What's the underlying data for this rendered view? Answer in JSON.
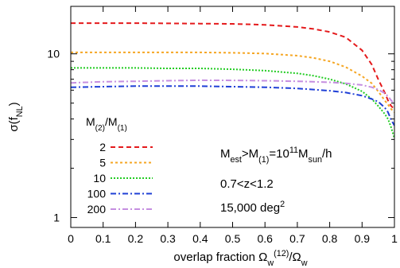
{
  "chart_data": {
    "type": "line",
    "xlabel": {
      "main": "overlap fraction Ω",
      "sub": "w",
      "sup": "(12)",
      "tail": "/Ω",
      "tail_sub": "w"
    },
    "ylabel": {
      "main": "σ(f",
      "sub": "NL",
      "tail": ")"
    },
    "x_ticks": [
      "0",
      "0.1",
      "0.2",
      "0.3",
      "0.4",
      "0.5",
      "0.6",
      "0.7",
      "0.8",
      "0.9",
      "1"
    ],
    "y_ticks": [
      "1",
      "10"
    ],
    "xlim": [
      0,
      1
    ],
    "ylim": [
      0.87,
      19.5
    ],
    "yscale": "log",
    "grid": false,
    "legend": {
      "title": {
        "p1": "M",
        "s1": "(2)",
        "p2": "/M",
        "s2": "(1)"
      },
      "placement": "left"
    },
    "annotations": [
      {
        "parts": [
          [
            "n",
            "M"
          ],
          [
            "sub",
            "est"
          ],
          [
            "n",
            ">M"
          ],
          [
            "sub",
            "(1)"
          ],
          [
            "n",
            "=10"
          ],
          [
            "sup",
            "11"
          ],
          [
            "n",
            "M"
          ],
          [
            "sub",
            "sun"
          ],
          [
            "n",
            "/h"
          ]
        ]
      },
      {
        "parts": [
          [
            "n",
            "0.7<z<1.2"
          ]
        ]
      },
      {
        "parts": [
          [
            "n",
            "15,000 deg"
          ],
          [
            "sup",
            "2"
          ]
        ]
      }
    ],
    "series": [
      {
        "name": "2",
        "color": "#e41a1c",
        "dash": "6,4",
        "x": [
          0,
          0.1,
          0.2,
          0.3,
          0.4,
          0.5,
          0.6,
          0.7,
          0.75,
          0.8,
          0.85,
          0.9,
          0.93,
          0.95,
          0.97,
          0.98,
          0.99,
          1.0
        ],
        "y": [
          15.4,
          15.4,
          15.4,
          15.35,
          15.3,
          15.25,
          15.05,
          14.6,
          14.2,
          13.6,
          12.6,
          10.5,
          8.6,
          7.0,
          5.8,
          5.2,
          4.8,
          4.6
        ]
      },
      {
        "name": "5",
        "color": "#f5a623",
        "dash": "3,3",
        "x": [
          0,
          0.1,
          0.2,
          0.3,
          0.4,
          0.5,
          0.6,
          0.7,
          0.75,
          0.8,
          0.85,
          0.9,
          0.93,
          0.95,
          0.97,
          0.98,
          0.99,
          1.0
        ],
        "y": [
          10.2,
          10.2,
          10.2,
          10.2,
          10.2,
          10.15,
          10.05,
          9.75,
          9.45,
          9.0,
          8.3,
          7.3,
          6.6,
          5.9,
          5.2,
          4.9,
          4.6,
          4.4
        ]
      },
      {
        "name": "10",
        "color": "#22cc22",
        "dash": "2,2",
        "x": [
          0,
          0.1,
          0.2,
          0.3,
          0.4,
          0.5,
          0.6,
          0.7,
          0.75,
          0.8,
          0.85,
          0.9,
          0.93,
          0.95,
          0.97,
          0.98,
          0.99,
          1.0
        ],
        "y": [
          8.2,
          8.2,
          8.2,
          8.15,
          8.15,
          8.05,
          7.9,
          7.6,
          7.35,
          7.0,
          6.55,
          5.9,
          5.3,
          4.8,
          4.3,
          4.0,
          3.55,
          3.05
        ]
      },
      {
        "name": "100",
        "color": "#1f3fd6",
        "dash": "7,3,2,3",
        "x": [
          0,
          0.1,
          0.2,
          0.3,
          0.4,
          0.5,
          0.6,
          0.7,
          0.8,
          0.85,
          0.9,
          0.93,
          0.95,
          0.97,
          0.98,
          0.99,
          1.0
        ],
        "y": [
          6.25,
          6.3,
          6.35,
          6.35,
          6.35,
          6.3,
          6.25,
          6.15,
          5.95,
          5.8,
          5.55,
          5.3,
          5.1,
          4.7,
          4.4,
          3.95,
          3.65
        ]
      },
      {
        "name": "200",
        "color": "#c58ee0",
        "dash": "7,3,2,3",
        "x": [
          0,
          0.1,
          0.2,
          0.3,
          0.4,
          0.5,
          0.6,
          0.7,
          0.8,
          0.85,
          0.9,
          0.93,
          0.95,
          0.97,
          0.98,
          0.99,
          1.0
        ],
        "y": [
          6.65,
          6.75,
          6.8,
          6.85,
          6.9,
          6.88,
          6.85,
          6.8,
          6.7,
          6.6,
          6.45,
          6.25,
          6.05,
          5.75,
          5.5,
          5.2,
          4.95
        ]
      }
    ]
  }
}
